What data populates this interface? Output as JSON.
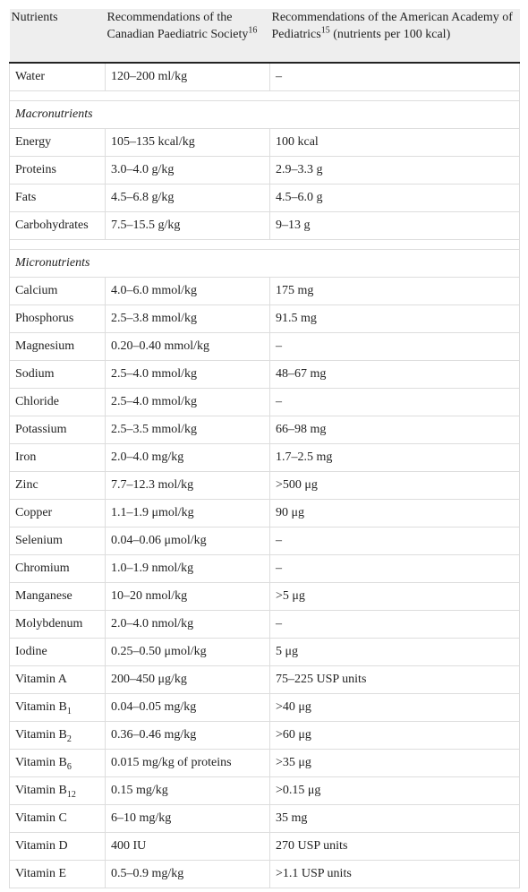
{
  "table": {
    "header": [
      "Nutrients",
      {
        "text": "Recommendations of the Canadian Paediatric Society",
        "sup": "16"
      },
      {
        "text": "Recommendations of the American Academy of Pediatrics",
        "sup": "15",
        "after": " (nutrients per 100 kcal)"
      }
    ],
    "rows": [
      {
        "cells": [
          "Water",
          "120–200 ml/kg",
          "–"
        ]
      },
      {
        "section": "Macronutrients"
      },
      {
        "cells": [
          "Energy",
          "105–135 kcal/kg",
          "100 kcal"
        ]
      },
      {
        "cells": [
          "Proteins",
          "3.0–4.0 g/kg",
          "2.9–3.3 g"
        ]
      },
      {
        "cells": [
          "Fats",
          "4.5–6.8 g/kg",
          "4.5–6.0 g"
        ]
      },
      {
        "cells": [
          "Carbohydrates",
          "7.5–15.5 g/kg",
          "9–13 g"
        ]
      },
      {
        "section": "Micronutrients"
      },
      {
        "cells": [
          "Calcium",
          "4.0–6.0 mmol/kg",
          "175 mg"
        ]
      },
      {
        "cells": [
          "Phosphorus",
          "2.5–3.8 mmol/kg",
          "91.5 mg"
        ]
      },
      {
        "cells": [
          "Magnesium",
          "0.20–0.40 mmol/kg",
          "–"
        ]
      },
      {
        "cells": [
          "Sodium",
          "2.5–4.0 mmol/kg",
          "48–67 mg"
        ]
      },
      {
        "cells": [
          "Chloride",
          "2.5–4.0 mmol/kg",
          "–"
        ]
      },
      {
        "cells": [
          "Potassium",
          "2.5–3.5 mmol/kg",
          "66–98 mg"
        ]
      },
      {
        "cells": [
          "Iron",
          "2.0–4.0 mg/kg",
          "1.7–2.5 mg"
        ]
      },
      {
        "cells": [
          "Zinc",
          "7.7–12.3 mol/kg",
          ">500 μg"
        ]
      },
      {
        "cells": [
          "Copper",
          "1.1–1.9 μmol/kg",
          "90 μg"
        ]
      },
      {
        "cells": [
          "Selenium",
          "0.04–0.06 μmol/kg",
          "–"
        ]
      },
      {
        "cells": [
          "Chromium",
          "1.0–1.9 nmol/kg",
          "–"
        ]
      },
      {
        "cells": [
          "Manganese",
          "10–20 nmol/kg",
          ">5 μg"
        ]
      },
      {
        "cells": [
          "Molybdenum",
          "2.0–4.0 nmol/kg",
          "–"
        ]
      },
      {
        "cells": [
          "Iodine",
          "0.25–0.50 μmol/kg",
          "5 μg"
        ]
      },
      {
        "cells": [
          "Vitamin A",
          "200–450 μg/kg",
          "75–225 USP units"
        ]
      },
      {
        "cells": [
          {
            "text": "Vitamin B",
            "sub": "1"
          },
          "0.04–0.05 mg/kg",
          ">40 μg"
        ]
      },
      {
        "cells": [
          {
            "text": "Vitamin B",
            "sub": "2"
          },
          "0.36–0.46 mg/kg",
          ">60 μg"
        ]
      },
      {
        "cells": [
          {
            "text": "Vitamin B",
            "sub": "6"
          },
          "0.015 mg/kg of proteins",
          ">35 μg"
        ]
      },
      {
        "cells": [
          {
            "text": "Vitamin B",
            "sub": "12"
          },
          "0.15 mg/kg",
          ">0.15 μg"
        ]
      },
      {
        "cells": [
          "Vitamin C",
          "6–10 mg/kg",
          "35 mg"
        ]
      },
      {
        "cells": [
          "Vitamin D",
          "400 IU",
          "270 USP units"
        ]
      },
      {
        "cells": [
          "Vitamin E",
          "0.5–0.9 mg/kg",
          ">1.1 USP units"
        ]
      }
    ]
  }
}
